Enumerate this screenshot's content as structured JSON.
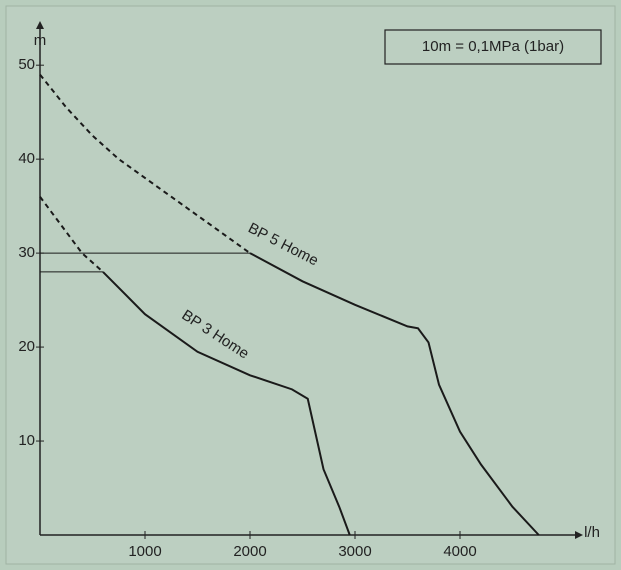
{
  "chart_data": {
    "type": "line",
    "xlabel": "l/h",
    "ylabel": "m",
    "xlim": [
      0,
      5000
    ],
    "ylim": [
      0,
      53
    ],
    "xticks": [
      1000,
      2000,
      3000,
      4000
    ],
    "yticks": [
      10,
      20,
      30,
      40,
      50
    ],
    "color": "#1a1a1a",
    "annotations": [
      "BP 5 Home",
      "BP 3 Home",
      "10m = 0,1MPa (1bar)"
    ],
    "series": [
      {
        "style": "dashed",
        "x": [
          0,
          250,
          500,
          750,
          1000,
          1250,
          1500,
          1750,
          2000
        ],
        "values": [
          49,
          45.5,
          42.5,
          40,
          38,
          36,
          34,
          32,
          30
        ]
      },
      {
        "style": "solid",
        "x": [
          2000,
          2500,
          3000,
          3500,
          3600,
          3700,
          3800,
          4000,
          4200,
          4500,
          4750
        ],
        "values": [
          30,
          27,
          24.5,
          22.2,
          22,
          20.5,
          16,
          11,
          7.5,
          3,
          0
        ]
      },
      {
        "style": "dashed",
        "x": [
          0,
          200,
          400,
          600
        ],
        "values": [
          36,
          33,
          30,
          28
        ]
      },
      {
        "style": "solid",
        "x": [
          600,
          1000,
          1500,
          2000,
          2400,
          2550,
          2600,
          2700,
          2850,
          2950
        ],
        "values": [
          28,
          23.5,
          19.5,
          17,
          15.5,
          14.5,
          12,
          7,
          3,
          0
        ]
      },
      {
        "style": "thin",
        "x": [
          0,
          2000
        ],
        "values": [
          30,
          30
        ]
      },
      {
        "style": "thin",
        "x": [
          0,
          600
        ],
        "values": [
          28,
          28
        ]
      }
    ]
  }
}
